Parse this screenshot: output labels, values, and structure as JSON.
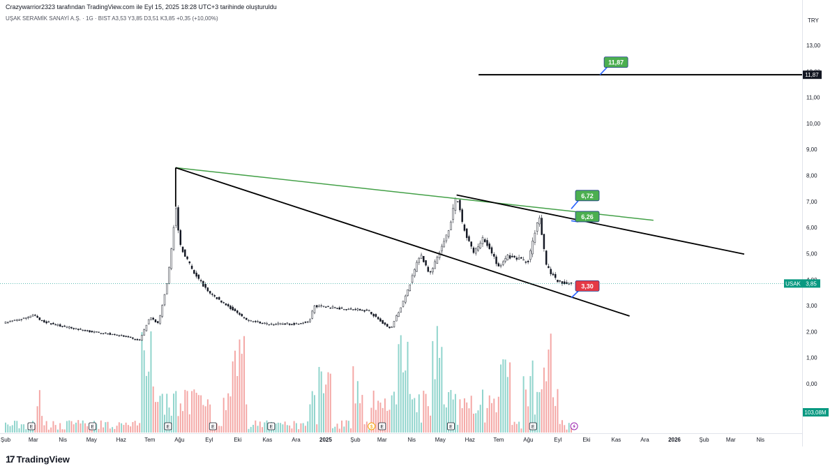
{
  "header": {
    "credit": "Crazywarrior2323 tarafından TradingView.com ile Eyl 15, 2025 18:28 UTC+3 tarihinde oluşturuldu",
    "symbol_line": "UŞAK SERAMİK SANAYİ A.Ş. · 1G · BIST  A3,53  Y3,85  D3,51  K3,85  +0,35 (+10,00%)",
    "currency": "TRY"
  },
  "brand": {
    "logo_text": "TradingView"
  },
  "colors": {
    "up": "#26a69a",
    "down": "#ef5350",
    "volume_up": "#8fd4cc",
    "volume_down": "#f4a6a4",
    "trendline_green": "#43a047",
    "trendline_black": "#000000",
    "label_green": "#4caf50",
    "label_red": "#e53945",
    "price_label": "#089981",
    "dotted_price": "#26a69a"
  },
  "chart_data": {
    "type": "candlestick",
    "symbol": "USAK",
    "exchange": "BIST",
    "interval": "1G",
    "ylim": [
      -0.6,
      13.5
    ],
    "y_ticks": [
      "13,00",
      "12,00",
      "11,00",
      "10,00",
      "9,00",
      "8,00",
      "7,00",
      "6,00",
      "5,00",
      "4,00",
      "3,00",
      "2,00",
      "1,00",
      "0,00"
    ],
    "x_ticks": [
      "Şub",
      "Mar",
      "Nis",
      "May",
      "Haz",
      "Tem",
      "Ağu",
      "Eyl",
      "Eki",
      "Kas",
      "Ara",
      "2025",
      "Şub",
      "Mar",
      "Nis",
      "May",
      "Haz",
      "Tem",
      "Ağu",
      "Eyl",
      "Eki",
      "Kas",
      "Ara",
      "2026",
      "Şub",
      "Mar",
      "Nis"
    ],
    "x_start": "2024-02-01",
    "x_end": "2026-04-30",
    "last_date": "2025-09-15",
    "last_price": 3.85,
    "last_price_label": "3,85",
    "symbol_tag": "USAK",
    "volume_label": "103,08M",
    "price_path": [
      [
        "2024-02-01",
        2.35
      ],
      [
        "2024-02-20",
        2.5
      ],
      [
        "2024-03-01",
        2.65
      ],
      [
        "2024-03-10",
        2.4
      ],
      [
        "2024-04-01",
        2.2
      ],
      [
        "2024-05-01",
        2.0
      ],
      [
        "2024-06-01",
        1.85
      ],
      [
        "2024-06-20",
        1.65
      ],
      [
        "2024-07-01",
        2.55
      ],
      [
        "2024-07-10",
        2.3
      ],
      [
        "2024-07-20",
        4.0
      ],
      [
        "2024-07-28",
        6.8
      ],
      [
        "2024-08-01",
        5.4
      ],
      [
        "2024-08-15",
        4.3
      ],
      [
        "2024-09-01",
        3.5
      ],
      [
        "2024-09-20",
        3.0
      ],
      [
        "2024-10-10",
        2.45
      ],
      [
        "2024-11-01",
        2.3
      ],
      [
        "2024-12-01",
        2.3
      ],
      [
        "2024-12-15",
        2.4
      ],
      [
        "2024-12-20",
        3.0
      ],
      [
        "2025-01-15",
        2.9
      ],
      [
        "2025-02-15",
        2.8
      ],
      [
        "2025-03-01",
        2.35
      ],
      [
        "2025-03-10",
        2.1
      ],
      [
        "2025-03-25",
        3.3
      ],
      [
        "2025-04-10",
        5.0
      ],
      [
        "2025-04-20",
        4.2
      ],
      [
        "2025-05-01",
        5.1
      ],
      [
        "2025-05-10",
        6.0
      ],
      [
        "2025-05-18",
        7.2
      ],
      [
        "2025-05-25",
        6.0
      ],
      [
        "2025-06-05",
        5.0
      ],
      [
        "2025-06-15",
        5.6
      ],
      [
        "2025-07-01",
        4.5
      ],
      [
        "2025-07-10",
        4.9
      ],
      [
        "2025-08-01",
        4.7
      ],
      [
        "2025-08-12",
        6.5
      ],
      [
        "2025-08-20",
        4.5
      ],
      [
        "2025-09-01",
        3.9
      ],
      [
        "2025-09-15",
        3.85
      ]
    ],
    "volume_bars": 250,
    "earnings_markers": [
      "2024-02-28",
      "2024-05-02",
      "2024-07-20",
      "2024-09-05",
      "2024-11-05",
      "2025-03-01",
      "2025-05-12",
      "2025-08-06"
    ],
    "dividend_markers": [
      "2025-02-18"
    ],
    "event_markers": [
      "2025-09-18"
    ],
    "annotations": [
      {
        "type": "trendline",
        "color": "green",
        "from": [
          "2024-07-28",
          8.3
        ],
        "to": [
          "2025-12-10",
          6.28
        ]
      },
      {
        "type": "trendline",
        "color": "black",
        "from": [
          "2024-07-28",
          8.3
        ],
        "to": [
          "2025-11-15",
          2.6
        ]
      },
      {
        "type": "trendline",
        "color": "black",
        "from": [
          "2025-05-18",
          7.25
        ],
        "to": [
          "2026-03-15",
          4.98
        ]
      },
      {
        "type": "vertical",
        "color": "black",
        "date": "2024-07-28",
        "from": 6.8,
        "to": 8.3
      },
      {
        "type": "horizontal",
        "color": "black",
        "price": 11.87,
        "from": "2025-06-10"
      }
    ],
    "price_tags": [
      {
        "label": "11,87",
        "color": "green",
        "anchor_date": "2025-10-15",
        "anchor_price": 11.87
      },
      {
        "label": "6,72",
        "color": "green",
        "anchor_date": "2025-09-15",
        "anchor_price": 6.72
      },
      {
        "label": "6,26",
        "color": "green",
        "anchor_date": "2025-09-15",
        "anchor_price": 6.26
      },
      {
        "label": "3,30",
        "color": "red",
        "anchor_date": "2025-09-15",
        "anchor_price": 3.3
      }
    ],
    "axis_price_label": "11,87"
  }
}
